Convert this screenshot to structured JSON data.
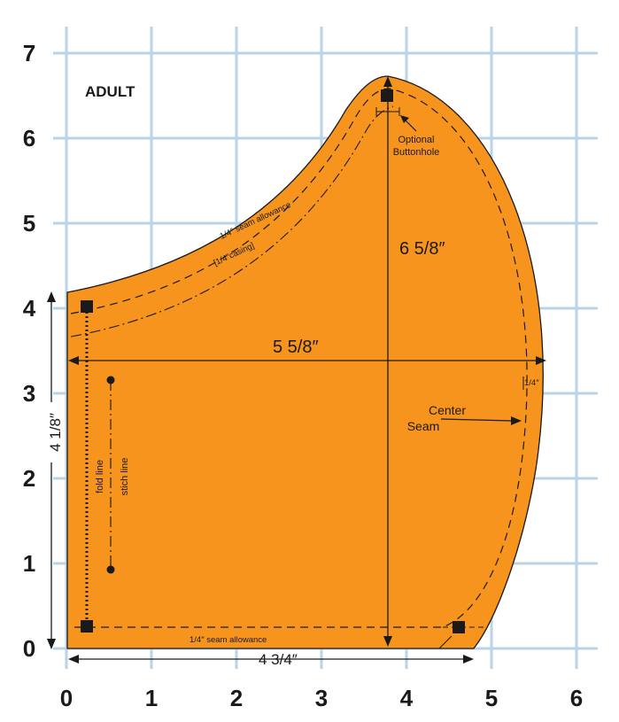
{
  "title": "ADULT",
  "x_ticks": [
    "0",
    "1",
    "2",
    "3",
    "4",
    "5",
    "6"
  ],
  "y_ticks": [
    "0",
    "1",
    "2",
    "3",
    "4",
    "5",
    "6",
    "7"
  ],
  "labels": {
    "height_dim": "6 5/8″",
    "width_dim": "5 5/8″",
    "side_dim": "4 1/8″",
    "bottom_dim": "4 3/4″",
    "quarter": "1/4″",
    "seam_allowance_top": "1/4″ seam allowance",
    "casing": "[1/4″casing]",
    "seam_allowance_bottom": "1/4″ seam allowance",
    "fold_line": "fold line",
    "stitch_line": "stich line",
    "optional": "Optional",
    "buttonhole": "Buttonhole",
    "center": "Center",
    "seam": "Seam"
  },
  "colors": {
    "fabric": "#f7941d",
    "grid": "#b9d3ea",
    "ink": "#1a1a1a"
  }
}
